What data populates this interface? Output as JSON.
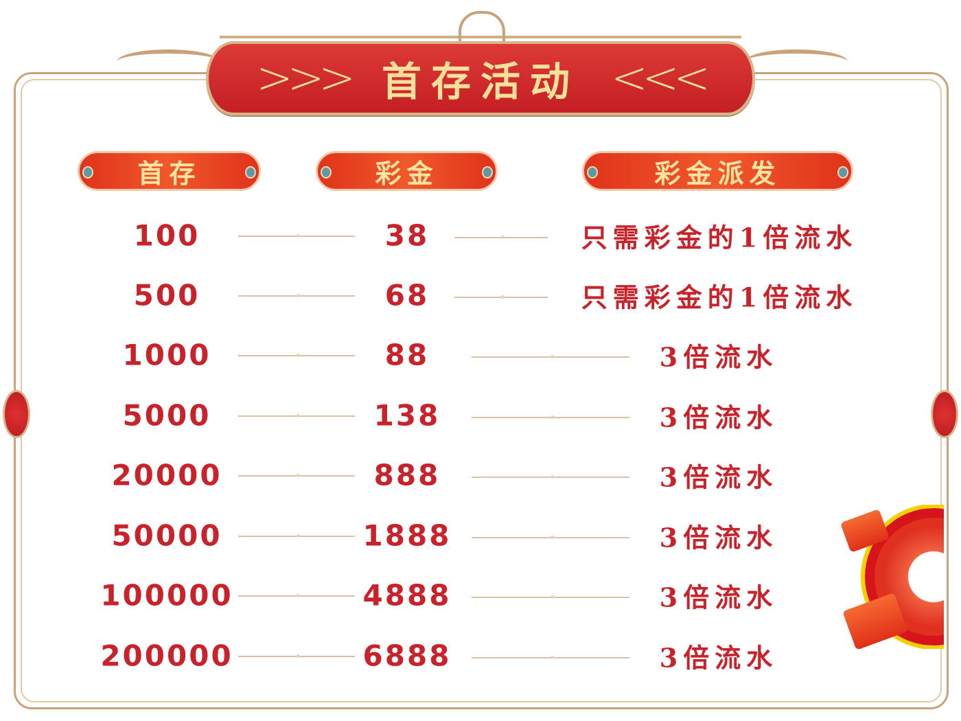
{
  "title": {
    "text": "首存活动",
    "left_chevrons": ">>>",
    "right_chevrons": "<<<"
  },
  "headers": [
    "首存",
    "彩金",
    "彩金派发"
  ],
  "rows": [
    {
      "deposit": "100",
      "bonus": "38",
      "payout": "只需彩金的1倍流水"
    },
    {
      "deposit": "500",
      "bonus": "68",
      "payout": "只需彩金的1倍流水"
    },
    {
      "deposit": "1000",
      "bonus": "88",
      "payout": "3倍流水"
    },
    {
      "deposit": "5000",
      "bonus": "138",
      "payout": "3倍流水"
    },
    {
      "deposit": "20000",
      "bonus": "888",
      "payout": "3倍流水"
    },
    {
      "deposit": "50000",
      "bonus": "1888",
      "payout": "3倍流水"
    },
    {
      "deposit": "100000",
      "bonus": "4888",
      "payout": "3倍流水"
    },
    {
      "deposit": "200000",
      "bonus": "6888",
      "payout": "3倍流水"
    }
  ],
  "colors": {
    "text_red": "#c8232a",
    "banner_red": "#c41f24",
    "gold": "#f7e09a",
    "frame": "#c9a27a"
  }
}
